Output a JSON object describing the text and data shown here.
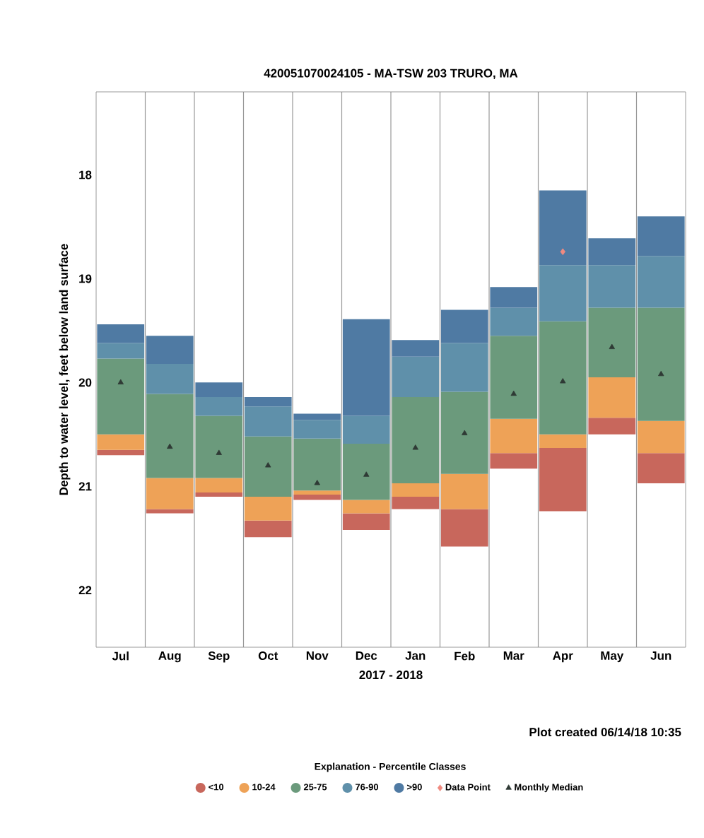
{
  "chart_data": {
    "type": "bar",
    "title": "420051070024105 - MA-TSW 203 TRURO, MA",
    "xlabel": "2017 - 2018",
    "ylabel": "Depth to water level, feet below land surface",
    "legend_title": "Explanation - Percentile Classes",
    "annotations": [
      "Plot created 06/14/18 10:35"
    ],
    "categories": [
      "Jul",
      "Aug",
      "Sep",
      "Oct",
      "Nov",
      "Dec",
      "Jan",
      "Feb",
      "Mar",
      "Apr",
      "May",
      "Jun"
    ],
    "series": [
      {
        "name": ">90",
        "color": "#4f7aa3",
        "base": [
          19.44,
          19.55,
          20.0,
          20.14,
          20.3,
          19.39,
          19.59,
          19.3,
          19.08,
          18.15,
          18.61,
          18.4
        ],
        "values": [
          0.18,
          0.27,
          0.14,
          0.09,
          0.06,
          0.93,
          0.16,
          0.32,
          0.2,
          0.72,
          0.26,
          0.38
        ]
      },
      {
        "name": "76-90",
        "color": "#5f90aa",
        "base": [
          19.62,
          19.82,
          20.14,
          20.23,
          20.36,
          20.32,
          19.75,
          19.62,
          19.28,
          18.87,
          18.87,
          18.78
        ],
        "values": [
          0.15,
          0.29,
          0.18,
          0.29,
          0.18,
          0.27,
          0.39,
          0.47,
          0.27,
          0.54,
          0.41,
          0.5
        ]
      },
      {
        "name": "25-75",
        "color": "#6b9a7c",
        "base": [
          19.77,
          20.11,
          20.32,
          20.52,
          20.54,
          20.59,
          20.14,
          20.09,
          19.55,
          19.41,
          19.28,
          19.28
        ],
        "values": [
          0.73,
          0.81,
          0.6,
          0.58,
          0.5,
          0.54,
          0.83,
          0.79,
          0.8,
          1.09,
          0.67,
          1.09
        ]
      },
      {
        "name": "10-24",
        "color": "#eea257",
        "base": [
          20.5,
          20.92,
          20.92,
          21.1,
          21.04,
          21.13,
          20.97,
          20.88,
          20.35,
          20.5,
          19.95,
          20.37
        ],
        "values": [
          0.15,
          0.3,
          0.14,
          0.23,
          0.04,
          0.13,
          0.13,
          0.34,
          0.33,
          0.13,
          0.39,
          0.31
        ]
      },
      {
        "name": "<10",
        "color": "#c8675c",
        "base": [
          20.65,
          21.22,
          21.06,
          21.33,
          21.08,
          21.26,
          21.1,
          21.22,
          20.68,
          20.63,
          20.34,
          20.68
        ],
        "values": [
          0.05,
          0.04,
          0.04,
          0.16,
          0.05,
          0.16,
          0.12,
          0.36,
          0.15,
          0.61,
          0.16,
          0.29
        ]
      },
      {
        "name": "Data Point",
        "type": "scatter",
        "marker": "diamond",
        "color": "#f08a80",
        "values": [
          null,
          null,
          null,
          null,
          null,
          null,
          null,
          null,
          null,
          18.74,
          null,
          null
        ]
      },
      {
        "name": "Monthly Median",
        "type": "scatter",
        "marker": "triangle",
        "color": "#2f3a35",
        "values": [
          20.0,
          20.62,
          20.68,
          20.8,
          20.97,
          20.89,
          20.63,
          20.49,
          20.11,
          19.99,
          19.66,
          19.92
        ]
      }
    ],
    "ylim": [
      22.55,
      17.2
    ],
    "yticks": [
      18,
      19,
      20,
      21,
      22
    ],
    "grid": "x",
    "legend": "bottom"
  }
}
